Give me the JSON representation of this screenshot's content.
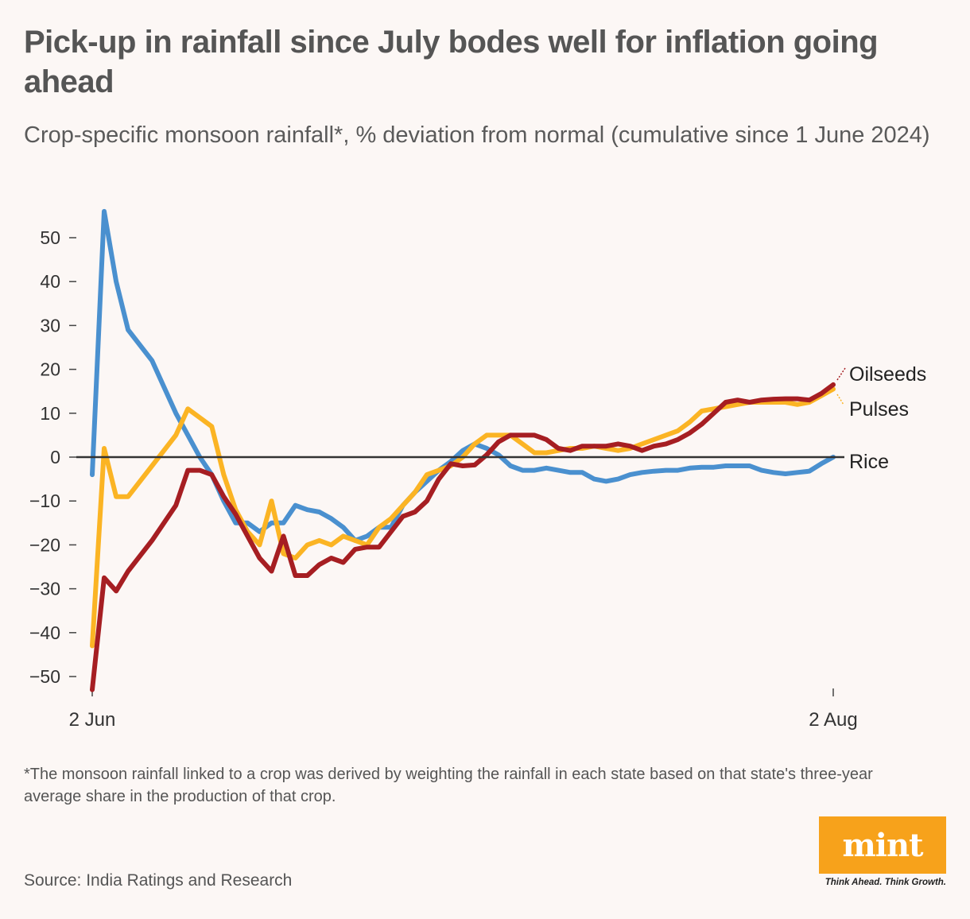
{
  "header": {
    "title": "Pick-up in rainfall since July bodes well for inflation going ahead",
    "subtitle": "Crop-specific monsoon rainfall*, % deviation from normal (cumulative since 1 June 2024)"
  },
  "footer": {
    "footnote": "*The monsoon rainfall linked to a crop was derived by weighting the rainfall in each state based on that state's three-year average share in the production of that crop.",
    "source": "Source: India Ratings and Research",
    "logo_text": "mint",
    "tagline": "Think Ahead. Think Growth."
  },
  "colors": {
    "rice": "#4a90cf",
    "pulses": "#fbb424",
    "oilseeds": "#a61e22",
    "zero_line": "#333333",
    "brand": "#f7a21b"
  },
  "chart_data": {
    "type": "line",
    "title": "Pick-up in rainfall since July bodes well for inflation going ahead",
    "ylabel": "% deviation from normal",
    "ylim": [
      -55,
      55
    ],
    "yticks": [
      50,
      40,
      30,
      20,
      10,
      0,
      -10,
      -20,
      -30,
      -40,
      -50
    ],
    "ytick_labels": [
      "50",
      "40",
      "30",
      "20",
      "10",
      "0",
      "−10",
      "−20",
      "−30",
      "−40",
      "−50"
    ],
    "xlim": [
      0,
      62
    ],
    "xticks": [
      {
        "x": 0,
        "label": "2 Jun"
      },
      {
        "x": 62,
        "label": "2 Aug"
      }
    ],
    "series": [
      {
        "name": "Rice",
        "label": "Rice",
        "x": [
          0,
          1,
          2,
          3,
          5,
          7,
          8,
          9,
          10,
          11,
          12,
          13,
          14,
          15,
          16,
          17,
          18,
          19,
          20,
          21,
          22,
          23,
          24,
          25,
          26,
          27,
          28,
          29,
          30,
          31,
          32,
          33,
          34,
          35,
          36,
          37,
          38,
          39,
          40,
          41,
          42,
          43,
          44,
          45,
          46,
          47,
          48,
          49,
          50,
          51,
          52,
          53,
          54,
          55,
          56,
          57,
          58,
          59,
          60,
          61,
          62
        ],
        "values": [
          -4,
          56,
          40,
          29,
          22,
          10,
          5,
          0,
          -4,
          -10,
          -15,
          -15,
          -17,
          -15,
          -15,
          -11,
          -12,
          -12.5,
          -14,
          -16,
          -19,
          -18,
          -16,
          -16,
          -11,
          -8,
          -5.5,
          -3,
          -1,
          1.5,
          3,
          2,
          0.5,
          -2,
          -3,
          -3,
          -2.5,
          -3,
          -3.5,
          -3.5,
          -5,
          -5.5,
          -5,
          -4,
          -3.5,
          -3.2,
          -3,
          -3,
          -2.5,
          -2.3,
          -2.3,
          -2,
          -2,
          -2,
          -3,
          -3.5,
          -3.8,
          -3.5,
          -3.2,
          -1.5,
          0
        ]
      },
      {
        "name": "Pulses",
        "label": "Pulses",
        "x": [
          0,
          1,
          2,
          3,
          5,
          7,
          8,
          10,
          11,
          12,
          13,
          14,
          15,
          16,
          17,
          18,
          19,
          20,
          21,
          22,
          23,
          24,
          25,
          26,
          27,
          28,
          29,
          30,
          31,
          32,
          33,
          34,
          35,
          36,
          37,
          38,
          39,
          40,
          41,
          42,
          43,
          44,
          45,
          46,
          47,
          48,
          49,
          50,
          51,
          52,
          53,
          54,
          55,
          56,
          57,
          58,
          59,
          60,
          61,
          62
        ],
        "values": [
          -43,
          2,
          -9,
          -9,
          -2,
          5,
          11,
          7,
          -4,
          -12,
          -17,
          -20,
          -10,
          -22,
          -23,
          -20,
          -19,
          -20,
          -18,
          -19,
          -20,
          -16,
          -14,
          -11,
          -8,
          -4,
          -3,
          -2,
          0,
          3,
          5,
          5,
          5,
          3,
          1,
          1,
          1.5,
          2,
          2,
          2.5,
          2,
          1.5,
          2,
          3,
          4,
          5,
          6,
          8,
          10.5,
          11,
          11.5,
          12,
          12.5,
          12.5,
          12.5,
          12.5,
          12,
          12.5,
          14,
          15.5
        ]
      },
      {
        "name": "Oilseeds",
        "label": "Oilseeds",
        "x": [
          0,
          1,
          2,
          3,
          5,
          7,
          8,
          9,
          10,
          11,
          12,
          13,
          14,
          15,
          16,
          17,
          18,
          19,
          20,
          21,
          22,
          23,
          24,
          25,
          26,
          27,
          28,
          29,
          30,
          31,
          32,
          33,
          34,
          35,
          36,
          37,
          38,
          39,
          40,
          41,
          42,
          43,
          44,
          45,
          46,
          47,
          48,
          49,
          50,
          51,
          52,
          53,
          54,
          55,
          56,
          57,
          58,
          59,
          60,
          61,
          62
        ],
        "values": [
          -53,
          -27.5,
          -30.5,
          -26,
          -19,
          -11,
          -3,
          -3,
          -4,
          -9,
          -13,
          -18,
          -23,
          -26,
          -18,
          -27,
          -27,
          -24.5,
          -23,
          -24,
          -21,
          -20.5,
          -20.5,
          -17,
          -13.5,
          -12.5,
          -10,
          -5,
          -1.5,
          -2,
          -1.8,
          0.5,
          3.5,
          5,
          5,
          5,
          4,
          2,
          1.5,
          2.5,
          2.5,
          2.5,
          3,
          2.5,
          1.5,
          2.5,
          3,
          4,
          5.5,
          7.5,
          10,
          12.5,
          13,
          12.5,
          13,
          13.2,
          13.3,
          13.3,
          13,
          14.5,
          16.5
        ]
      }
    ]
  }
}
